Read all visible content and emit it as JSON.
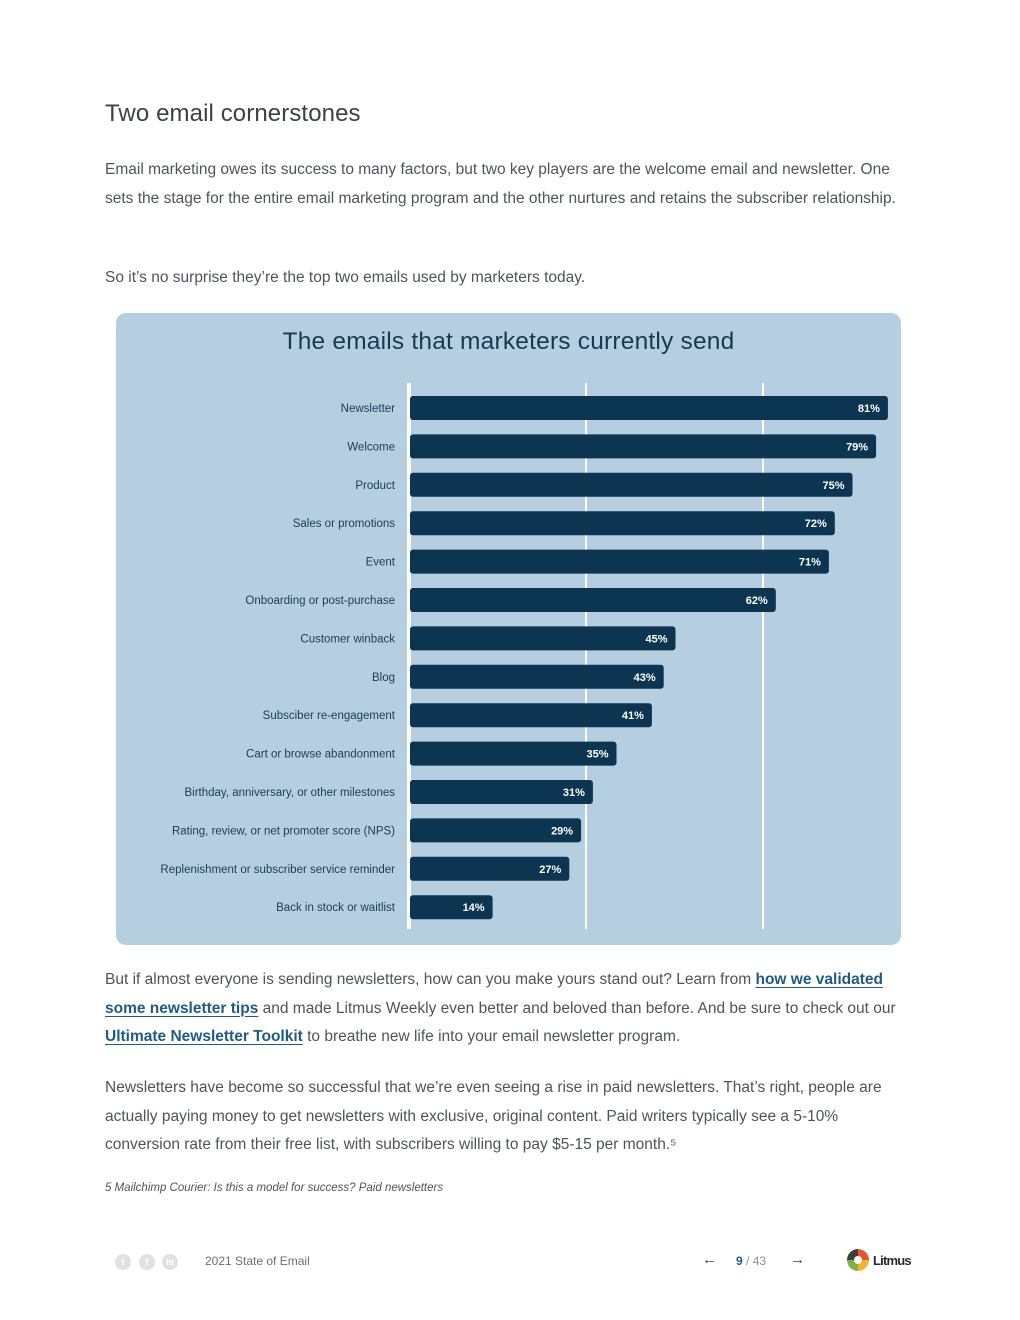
{
  "heading": "Two email cornerstones",
  "paragraph1": "Email marketing owes its success to many factors, but two key players are the welcome email and newsletter. One sets the stage for the entire email marketing program and the other nurtures and retains the subscriber relationship.",
  "paragraph2": "So it’s no surprise they’re the top two emails used by marketers today.",
  "paragraph3": {
    "before_link1": "But if almost everyone is sending newsletters, how can you make yours stand out? Learn from ",
    "link1": "how we validated some newsletter tips",
    "between_links": " and made Litmus Weekly even better and beloved than before. And be sure to check out our ",
    "link2": "Ultimate Newsletter Toolkit",
    "after_link2": " to breathe new life into your email newsletter program."
  },
  "paragraph4": "Newsletters have become so successful that we’re even seeing a rise in paid newsletters. That’s right, people are actually paying money to get newsletters with exclusive, original content. Paid writers typically see a 5-10% conversion rate from their free list, with subscribers willing to pay $5-15 per month.⁵",
  "footnote": "5 Mailchimp Courier: Is this a model for success? Paid newsletters",
  "chart_data": {
    "type": "bar",
    "orientation": "horizontal",
    "title": "The emails that marketers currently send",
    "categories": [
      "Newsletter",
      "Welcome",
      "Product",
      "Sales or promotions",
      "Event",
      "Onboarding or post-purchase",
      "Customer winback",
      "Blog",
      "Subsciber re-engagement",
      "Cart or browse abandonment",
      "Birthday, anniversary, or other milestones",
      "Rating, review, or net promoter score (NPS)",
      "Replenishment or subscriber service reminder",
      "Back in stock or waitlist"
    ],
    "values": [
      81,
      79,
      75,
      72,
      71,
      62,
      45,
      43,
      41,
      35,
      31,
      29,
      27,
      14
    ],
    "value_labels": [
      "81%",
      "79%",
      "75%",
      "72%",
      "71%",
      "62%",
      "45%",
      "43%",
      "41%",
      "35%",
      "31%",
      "29%",
      "27%",
      "14%"
    ],
    "xlim": [
      0,
      85
    ],
    "gridlines": [
      0,
      30,
      60
    ],
    "colors": {
      "bar": "#0b3550",
      "background": "#b5cfe1",
      "gridline": "#ffffff"
    }
  },
  "footer": {
    "social_icons": [
      "twitter-icon",
      "facebook-icon",
      "linkedin-icon"
    ],
    "doc_title": "2021 State of Email",
    "page_current": "9",
    "page_total": "/ 43",
    "prev_arrow": "←",
    "next_arrow": "→",
    "logo_text": "Litmus"
  }
}
